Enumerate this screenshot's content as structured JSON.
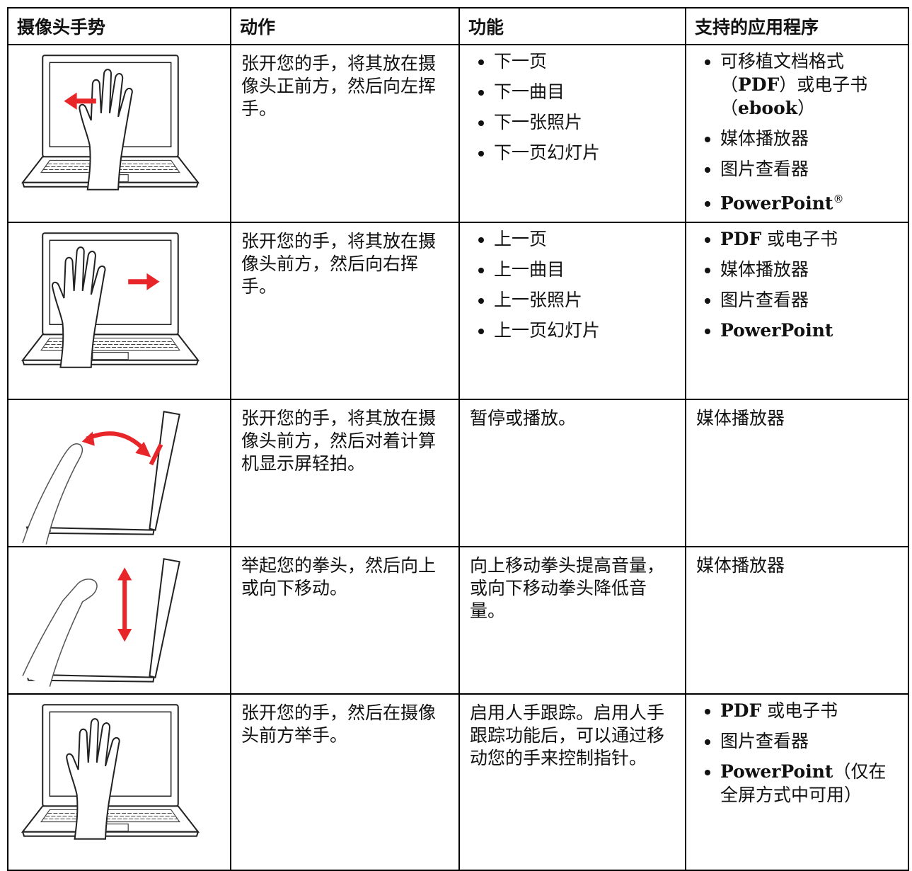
{
  "table": {
    "header": [
      "摄像头手势",
      "动作",
      "功能",
      "支持的应用程序"
    ],
    "rows": [
      {
        "action": "张开您的手，将其放在摄像头正前方，然后向左挥手。",
        "functions": [
          "下一页",
          "下一曲目",
          "下一张照片",
          "下一页幻灯片"
        ],
        "apps": [
          "可移植文档格式（PDF）或电子书（ebook）",
          "媒体播放器",
          "图片查看器",
          {
            "text": "PowerPoint",
            "sup": "®"
          }
        ]
      },
      {
        "action": "张开您的手，将其放在摄像头前方，然后向右挥手。",
        "functions": [
          "上一页",
          "上一曲目",
          "上一张照片",
          "上一页幻灯片"
        ],
        "apps": [
          "PDF 或电子书",
          "媒体播放器",
          "图片查看器",
          "PowerPoint"
        ]
      },
      {
        "action": "张开您的手，将其放在摄像头前方，然后对着计算机显示屏轻拍。",
        "function": "暂停或播放。",
        "app": "媒体播放器"
      },
      {
        "action": "举起您的拳头，然后向上或向下移动。",
        "function": "向上移动拳头提高音量，或向下移动拳头降低音量。",
        "app": "媒体播放器"
      },
      {
        "action": "张开您的手，然后在摄像头前方举手。",
        "function": "启用人手跟踪。启用人手跟踪功能后，可以通过移动您的手来控制指针。",
        "apps": [
          "PDF 或电子书",
          "图片查看器",
          "PowerPoint（仅在全屏方式中可用）"
        ]
      }
    ]
  }
}
